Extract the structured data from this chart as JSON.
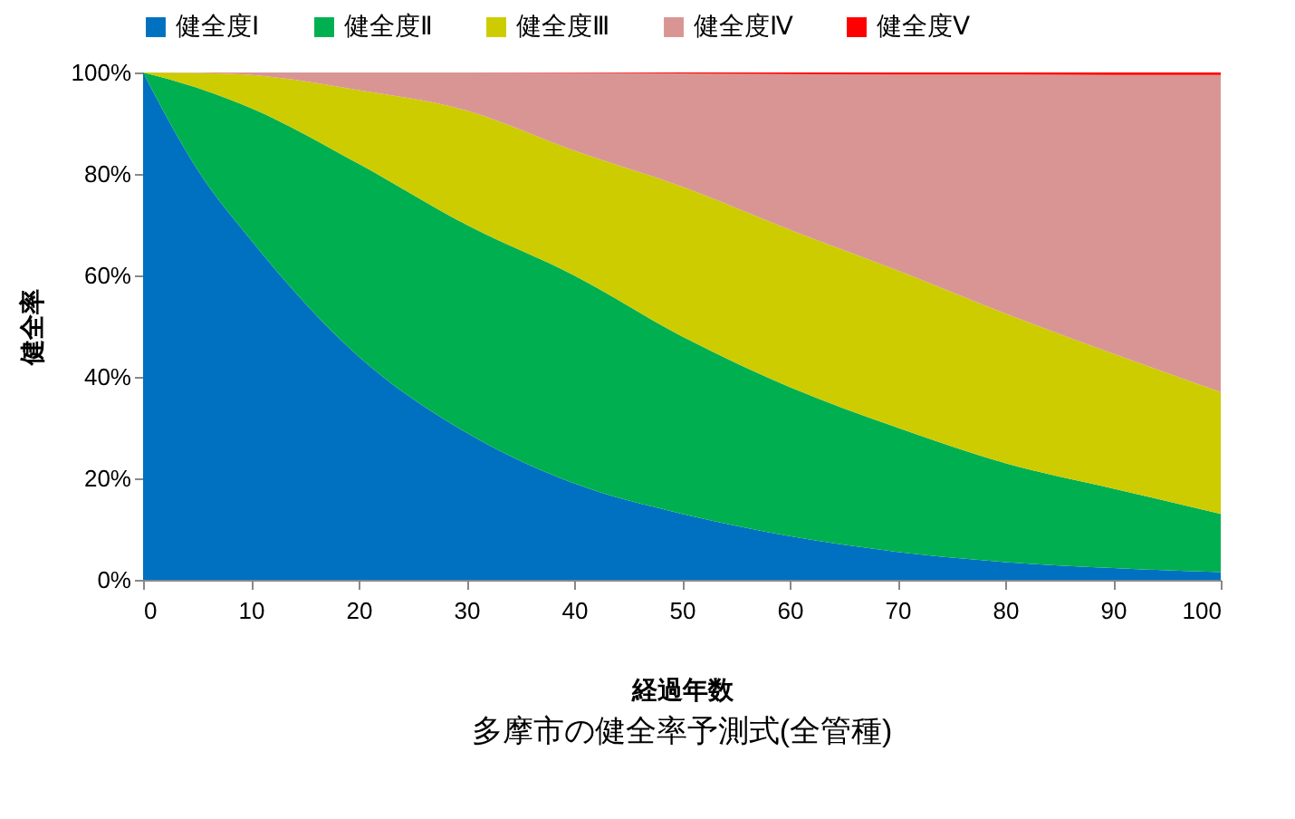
{
  "chart_data": {
    "type": "area",
    "stacked": true,
    "title": "多摩市の健全率予測式(全管種)",
    "xlabel": "経過年数",
    "ylabel": "健全率",
    "x": [
      0,
      5,
      10,
      20,
      30,
      40,
      50,
      60,
      70,
      80,
      90,
      100
    ],
    "series": [
      {
        "name": "健全度Ⅰ",
        "color": "#0070c0",
        "values": [
          100,
          81,
          67,
          44,
          29,
          19,
          13,
          8.6,
          5.5,
          3.5,
          2.3,
          1.5
        ]
      },
      {
        "name": "健全度Ⅱ",
        "color": "#00b050",
        "values": [
          0,
          16,
          26,
          38,
          41,
          41,
          35,
          29.4,
          24.5,
          19.5,
          15.7,
          11.5
        ]
      },
      {
        "name": "健全度Ⅲ",
        "color": "#cccc00",
        "values": [
          0,
          2.9,
          6.5,
          14.5,
          22.5,
          24.6,
          29.5,
          31,
          31,
          29.5,
          26.6,
          24
        ]
      },
      {
        "name": "健全度Ⅳ",
        "color": "#d99594",
        "values": [
          0,
          0.1,
          0.5,
          3.5,
          7.5,
          15.3,
          22.3,
          30.7,
          38.6,
          47.1,
          54.9,
          62.5
        ]
      },
      {
        "name": "健全度Ⅴ",
        "color": "#ff0000",
        "values": [
          0,
          0,
          0,
          0,
          0,
          0.1,
          0.2,
          0.3,
          0.4,
          0.4,
          0.5,
          0.5
        ]
      }
    ],
    "xlim": [
      0,
      100
    ],
    "xticks": [
      0,
      10,
      20,
      30,
      40,
      50,
      60,
      70,
      80,
      90,
      100
    ],
    "ylim": [
      0,
      100
    ],
    "yticks": [
      {
        "value": 0,
        "label": "0%"
      },
      {
        "value": 20,
        "label": "20%"
      },
      {
        "value": 40,
        "label": "40%"
      },
      {
        "value": 60,
        "label": "60%"
      },
      {
        "value": 80,
        "label": "80%"
      },
      {
        "value": 100,
        "label": "100%"
      }
    ],
    "legend": "top",
    "grid": false
  }
}
